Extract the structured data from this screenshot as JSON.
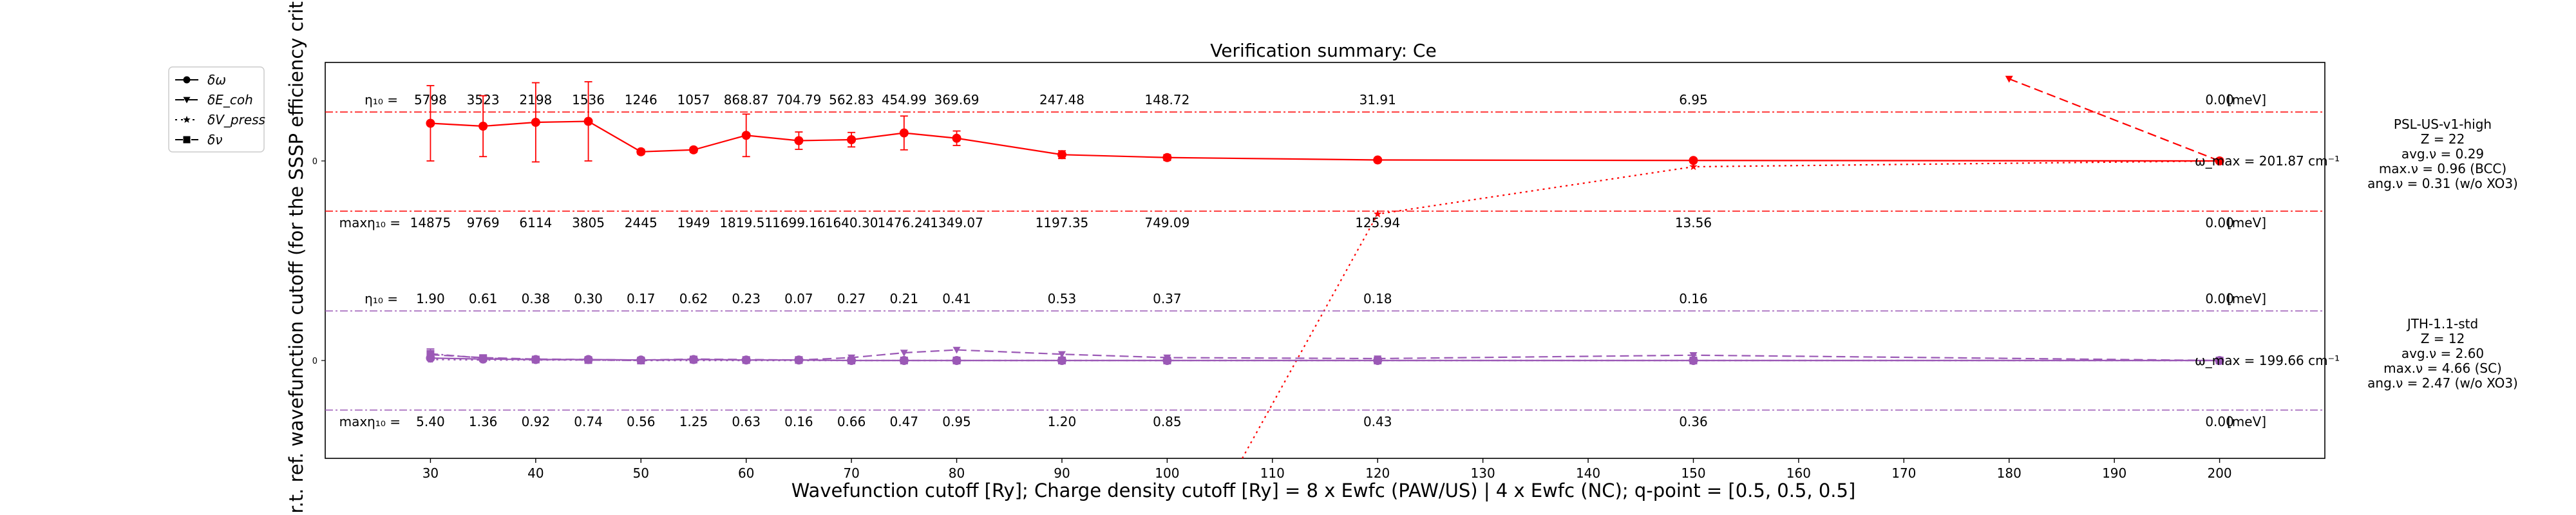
{
  "chart_data": {
    "type": "line",
    "title": "Verification summary: Ce",
    "xlabel": "Wavefunction cutoff [Ry]; Charge density cutoff [Ry] = 8 x Ewfc (PAW/US) | 4 x Ewfc (NC); q-point = [0.5, 0.5, 0.5]",
    "ylabel": "w.r.t. ref. wavefunction cutoff (for the SSSP efficiency crit",
    "xlim": [
      20,
      210
    ],
    "xticks": [
      30,
      40,
      50,
      60,
      70,
      80,
      90,
      100,
      110,
      120,
      130,
      140,
      150,
      160,
      170,
      180,
      190,
      200
    ],
    "grid": false,
    "legend": {
      "placement": "upper-left, outside axes",
      "entries": [
        {
          "label": "δω",
          "line": "solid",
          "marker": "circle"
        },
        {
          "label": "δE_coh",
          "line": "dashed",
          "marker": "triangle-down"
        },
        {
          "label": "δV_press",
          "line": "dotted",
          "marker": "star"
        },
        {
          "label": "δν",
          "line": "dash-dot",
          "marker": "square"
        }
      ]
    },
    "x": [
      30,
      35,
      40,
      45,
      50,
      55,
      60,
      65,
      70,
      75,
      80,
      90,
      100,
      120,
      150,
      200
    ],
    "panels": [
      {
        "name": "PSL-US-v1-high",
        "color": "#ff0000",
        "zero_tick": "0",
        "info": [
          "PSL-US-v1-high",
          "Z = 22",
          "avg.ν = 0.29",
          "max.ν = 0.96 (BCC)",
          "ang.ν = 0.31 (w/o XO3)"
        ],
        "omega_max_label": "ω_max = 201.87 cm⁻¹",
        "eta_label": "η₁₀ =",
        "eta_values": [
          "5798",
          "3523",
          "2198",
          "1536",
          "1246",
          "1057",
          "868.87",
          "704.79",
          "562.83",
          "454.99",
          "369.69",
          "247.48",
          "148.72",
          "31.91",
          "6.95",
          "0.00"
        ],
        "max_eta_label": "maxη₁₀ =",
        "max_eta_values": [
          "14875",
          "9769",
          "6114",
          "3805",
          "2445",
          "1949",
          "1819.51",
          "1699.16",
          "1640.30",
          "1476.24",
          "1349.07",
          "1197.35",
          "749.09",
          "125.94",
          "13.56",
          "0.00"
        ],
        "unit": "[meV]",
        "series": [
          {
            "name": "δω",
            "style": "solid",
            "values": [
              0.78,
              0.72,
              0.8,
              0.82,
              0.19,
              0.23,
              0.53,
              0.42,
              0.44,
              0.58,
              0.47,
              0.13,
              0.07,
              0.02,
              0.01,
              0.0
            ],
            "err": [
              0.78,
              0.63,
              0.82,
              0.82,
              0.05,
              0.05,
              0.44,
              0.18,
              0.15,
              0.35,
              0.15,
              0.08,
              0.06,
              0.02,
              0.02,
              0.0
            ]
          },
          {
            "name": "δE_coh",
            "style": "dashed",
            "x": [
              180,
              200
            ],
            "values": [
              1.7,
              0.0
            ]
          },
          {
            "name": "δV_press",
            "style": "dotted",
            "x": [
              105,
              120,
              150,
              200
            ],
            "values": [
              -7.0,
              -1.1,
              -0.12,
              0.0
            ]
          }
        ]
      },
      {
        "name": "JTH-1.1-std",
        "color": "#9b59b6",
        "zero_tick": "0",
        "info": [
          "JTH-1.1-std",
          "Z = 12",
          "avg.ν = 2.60",
          "max.ν = 4.66 (SC)",
          "ang.ν = 2.47 (w/o XO3)"
        ],
        "omega_max_label": "ω_max = 199.66 cm⁻¹",
        "eta_label": "η₁₀ =",
        "eta_values": [
          "1.90",
          "0.61",
          "0.38",
          "0.30",
          "0.17",
          "0.62",
          "0.23",
          "0.07",
          "0.27",
          "0.21",
          "0.41",
          "0.53",
          "0.37",
          "0.18",
          "0.16",
          "0.00"
        ],
        "max_eta_label": "maxη₁₀ =",
        "max_eta_values": [
          "5.40",
          "1.36",
          "0.92",
          "0.74",
          "0.56",
          "1.25",
          "0.63",
          "0.16",
          "0.66",
          "0.47",
          "0.95",
          "1.20",
          "0.85",
          "0.43",
          "0.36",
          "0.00"
        ],
        "unit": "[meV]",
        "series": [
          {
            "name": "δω",
            "style": "solid",
            "values": [
              0.05,
              0.03,
              0.02,
              0.02,
              0.01,
              0.02,
              0.01,
              0.01,
              0.0,
              0.0,
              0.0,
              0.0,
              0.0,
              0.0,
              0.0,
              0.0
            ]
          },
          {
            "name": "δE_coh",
            "style": "dashed",
            "values": [
              0.12,
              0.06,
              0.03,
              0.02,
              0.01,
              0.03,
              0.02,
              0.01,
              0.06,
              0.16,
              0.22,
              0.13,
              0.06,
              0.04,
              0.11,
              0.0
            ]
          },
          {
            "name": "δV_press",
            "style": "dotted",
            "values": [
              0.02,
              0.01,
              0.01,
              0.01,
              0.0,
              0.0,
              0.0,
              0.0,
              0.0,
              0.0,
              0.0,
              0.0,
              0.0,
              0.0,
              0.0,
              0.0
            ]
          },
          {
            "name": "δν",
            "style": "dash-dot",
            "values": [
              0.14,
              0.05,
              0.02,
              0.01,
              0.0,
              0.02,
              0.01,
              0.01,
              0.0,
              0.0,
              0.0,
              0.0,
              0.0,
              0.0,
              0.0,
              0.0
            ],
            "err": [
              0.1,
              0.05,
              0.04,
              0.03,
              0.02,
              0.04,
              0.03,
              0.02,
              0.03,
              0.02,
              0.02,
              0.03,
              0.02,
              0.02,
              0.02,
              0.0
            ]
          }
        ]
      }
    ]
  }
}
